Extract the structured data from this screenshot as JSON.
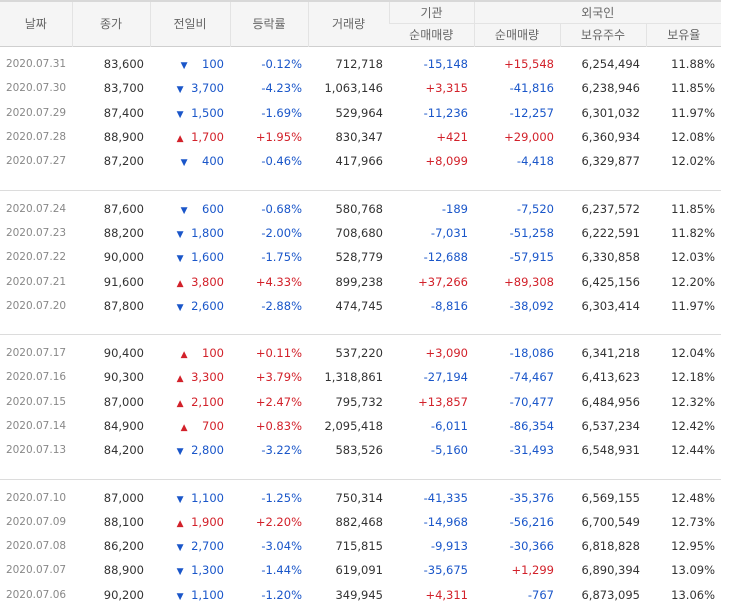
{
  "headers": {
    "date": "날짜",
    "close": "종가",
    "change": "전일비",
    "rate": "등락률",
    "volume": "거래량",
    "institution": "기관",
    "inst_net": "순매매량",
    "foreign": "외국인",
    "foreign_net": "순매매량",
    "holdings": "보유주수",
    "holding_ratio": "보유율"
  },
  "colors": {
    "up": "#d2212a",
    "down": "#1a56c9"
  },
  "icons": {
    "up": "triangle-up-icon",
    "down": "triangle-down-icon"
  },
  "groups": [
    [
      {
        "date": "2020.07.31",
        "close": "83,600",
        "dir": "down",
        "change": "100",
        "rate": "-0.12%",
        "volume": "712,718",
        "inst": "-15,148",
        "foreign": "+15,548",
        "holdings": "6,254,494",
        "ratio": "11.88%"
      },
      {
        "date": "2020.07.30",
        "close": "83,700",
        "dir": "down",
        "change": "3,700",
        "rate": "-4.23%",
        "volume": "1,063,146",
        "inst": "+3,315",
        "foreign": "-41,816",
        "holdings": "6,238,946",
        "ratio": "11.85%"
      },
      {
        "date": "2020.07.29",
        "close": "87,400",
        "dir": "down",
        "change": "1,500",
        "rate": "-1.69%",
        "volume": "529,964",
        "inst": "-11,236",
        "foreign": "-12,257",
        "holdings": "6,301,032",
        "ratio": "11.97%"
      },
      {
        "date": "2020.07.28",
        "close": "88,900",
        "dir": "up",
        "change": "1,700",
        "rate": "+1.95%",
        "volume": "830,347",
        "inst": "+421",
        "foreign": "+29,000",
        "holdings": "6,360,934",
        "ratio": "12.08%"
      },
      {
        "date": "2020.07.27",
        "close": "87,200",
        "dir": "down",
        "change": "400",
        "rate": "-0.46%",
        "volume": "417,966",
        "inst": "+8,099",
        "foreign": "-4,418",
        "holdings": "6,329,877",
        "ratio": "12.02%"
      }
    ],
    [
      {
        "date": "2020.07.24",
        "close": "87,600",
        "dir": "down",
        "change": "600",
        "rate": "-0.68%",
        "volume": "580,768",
        "inst": "-189",
        "foreign": "-7,520",
        "holdings": "6,237,572",
        "ratio": "11.85%"
      },
      {
        "date": "2020.07.23",
        "close": "88,200",
        "dir": "down",
        "change": "1,800",
        "rate": "-2.00%",
        "volume": "708,680",
        "inst": "-7,031",
        "foreign": "-51,258",
        "holdings": "6,222,591",
        "ratio": "11.82%"
      },
      {
        "date": "2020.07.22",
        "close": "90,000",
        "dir": "down",
        "change": "1,600",
        "rate": "-1.75%",
        "volume": "528,779",
        "inst": "-12,688",
        "foreign": "-57,915",
        "holdings": "6,330,858",
        "ratio": "12.03%"
      },
      {
        "date": "2020.07.21",
        "close": "91,600",
        "dir": "up",
        "change": "3,800",
        "rate": "+4.33%",
        "volume": "899,238",
        "inst": "+37,266",
        "foreign": "+89,308",
        "holdings": "6,425,156",
        "ratio": "12.20%"
      },
      {
        "date": "2020.07.20",
        "close": "87,800",
        "dir": "down",
        "change": "2,600",
        "rate": "-2.88%",
        "volume": "474,745",
        "inst": "-8,816",
        "foreign": "-38,092",
        "holdings": "6,303,414",
        "ratio": "11.97%"
      }
    ],
    [
      {
        "date": "2020.07.17",
        "close": "90,400",
        "dir": "up",
        "change": "100",
        "rate": "+0.11%",
        "volume": "537,220",
        "inst": "+3,090",
        "foreign": "-18,086",
        "holdings": "6,341,218",
        "ratio": "12.04%"
      },
      {
        "date": "2020.07.16",
        "close": "90,300",
        "dir": "up",
        "change": "3,300",
        "rate": "+3.79%",
        "volume": "1,318,861",
        "inst": "-27,194",
        "foreign": "-74,467",
        "holdings": "6,413,623",
        "ratio": "12.18%"
      },
      {
        "date": "2020.07.15",
        "close": "87,000",
        "dir": "up",
        "change": "2,100",
        "rate": "+2.47%",
        "volume": "795,732",
        "inst": "+13,857",
        "foreign": "-70,477",
        "holdings": "6,484,956",
        "ratio": "12.32%"
      },
      {
        "date": "2020.07.14",
        "close": "84,900",
        "dir": "up",
        "change": "700",
        "rate": "+0.83%",
        "volume": "2,095,418",
        "inst": "-6,011",
        "foreign": "-86,354",
        "holdings": "6,537,234",
        "ratio": "12.42%"
      },
      {
        "date": "2020.07.13",
        "close": "84,200",
        "dir": "down",
        "change": "2,800",
        "rate": "-3.22%",
        "volume": "583,526",
        "inst": "-5,160",
        "foreign": "-31,493",
        "holdings": "6,548,931",
        "ratio": "12.44%"
      }
    ],
    [
      {
        "date": "2020.07.10",
        "close": "87,000",
        "dir": "down",
        "change": "1,100",
        "rate": "-1.25%",
        "volume": "750,314",
        "inst": "-41,335",
        "foreign": "-35,376",
        "holdings": "6,569,155",
        "ratio": "12.48%"
      },
      {
        "date": "2020.07.09",
        "close": "88,100",
        "dir": "up",
        "change": "1,900",
        "rate": "+2.20%",
        "volume": "882,468",
        "inst": "-14,968",
        "foreign": "-56,216",
        "holdings": "6,700,549",
        "ratio": "12.73%"
      },
      {
        "date": "2020.07.08",
        "close": "86,200",
        "dir": "down",
        "change": "2,700",
        "rate": "-3.04%",
        "volume": "715,815",
        "inst": "-9,913",
        "foreign": "-30,366",
        "holdings": "6,818,828",
        "ratio": "12.95%"
      },
      {
        "date": "2020.07.07",
        "close": "88,900",
        "dir": "down",
        "change": "1,300",
        "rate": "-1.44%",
        "volume": "619,091",
        "inst": "-35,675",
        "foreign": "+1,299",
        "holdings": "6,890,394",
        "ratio": "13.09%"
      },
      {
        "date": "2020.07.06",
        "close": "90,200",
        "dir": "down",
        "change": "1,100",
        "rate": "-1.20%",
        "volume": "349,945",
        "inst": "+4,311",
        "foreign": "-767",
        "holdings": "6,873,095",
        "ratio": "13.06%"
      }
    ]
  ]
}
